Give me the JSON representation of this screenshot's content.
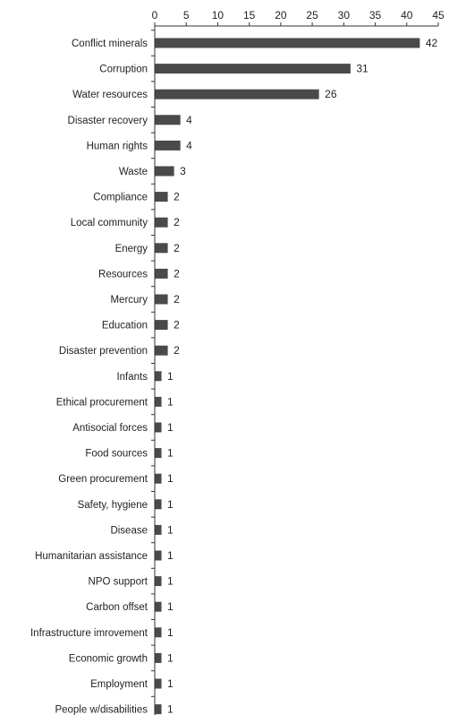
{
  "chart_data": {
    "type": "bar",
    "orientation": "horizontal",
    "x_axis_position": "top",
    "xlim": [
      0,
      45
    ],
    "xticks": [
      0,
      5,
      10,
      15,
      20,
      25,
      30,
      35,
      40,
      45
    ],
    "grid": false,
    "categories": [
      "Conflict minerals",
      "Corruption",
      "Water resources",
      "Disaster recovery",
      "Human rights",
      "Waste",
      "Compliance",
      "Local community",
      "Energy",
      "Resources",
      "Mercury",
      "Education",
      "Disaster prevention",
      "Infants",
      "Ethical procurement",
      "Antisocial forces",
      "Food sources",
      "Green procurement",
      "Safety, hygiene",
      "Disease",
      "Humanitarian assistance",
      "NPO support",
      "Carbon offset",
      "Infrastructure imrovement",
      "Economic growth",
      "Employment",
      "People w/disabilities"
    ],
    "values": [
      42,
      31,
      26,
      4,
      4,
      3,
      2,
      2,
      2,
      2,
      2,
      2,
      2,
      1,
      1,
      1,
      1,
      1,
      1,
      1,
      1,
      1,
      1,
      1,
      1,
      1,
      1
    ],
    "bar_color": "#4a4a4a",
    "axis_color": "#333333"
  }
}
